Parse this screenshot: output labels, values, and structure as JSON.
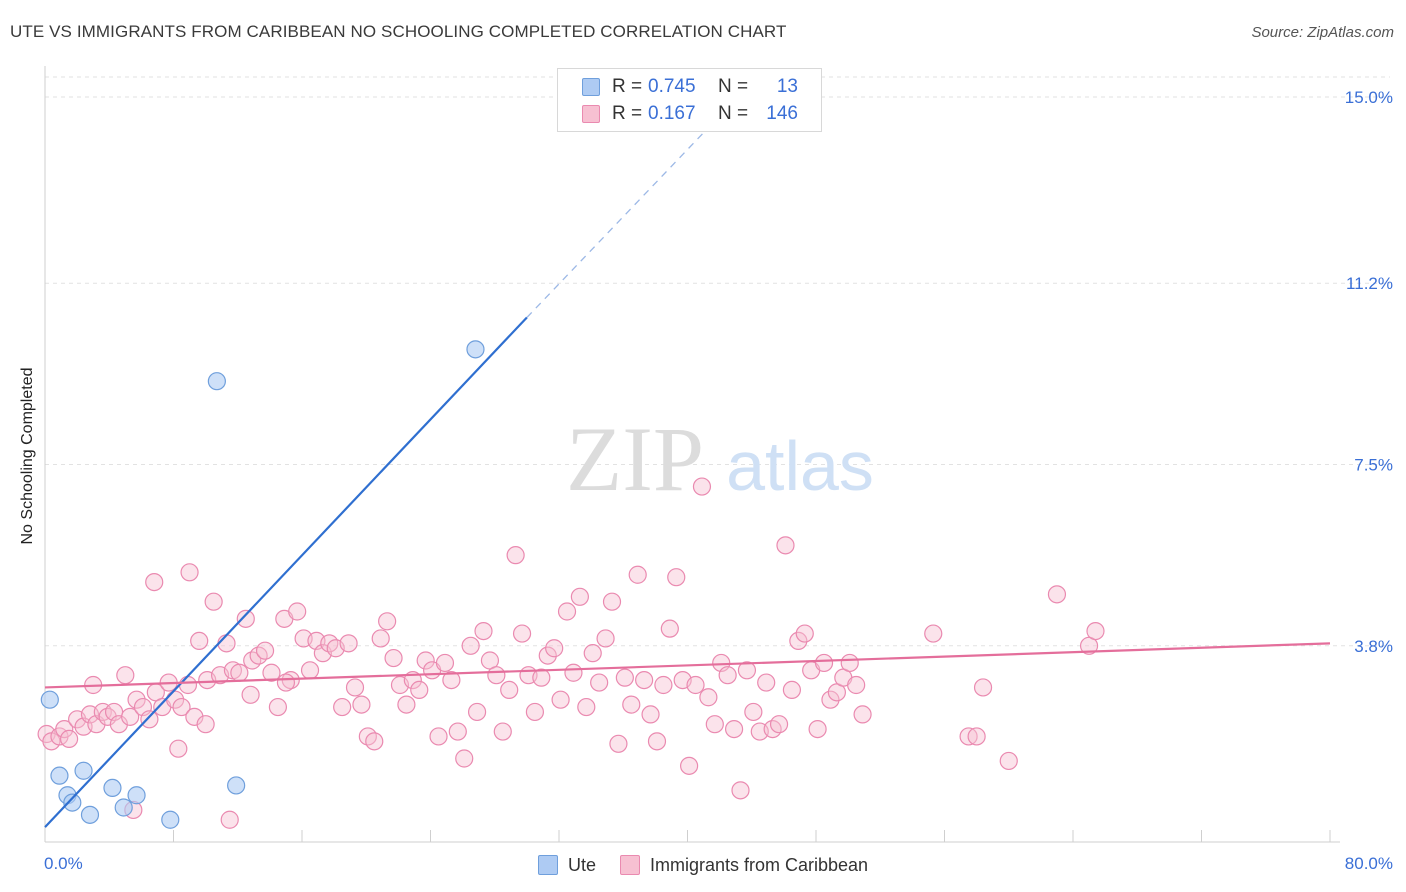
{
  "header": {
    "title": "UTE VS IMMIGRANTS FROM CARIBBEAN NO SCHOOLING COMPLETED CORRELATION CHART",
    "source": "Source: ZipAtlas.com"
  },
  "watermark": {
    "zip": "ZIP",
    "atlas": "atlas"
  },
  "legend": {
    "series1": {
      "r_label": "R =",
      "r_value": "0.745",
      "n_label": "N =",
      "n_value": "13"
    },
    "series2": {
      "r_label": "R =",
      "r_value": "0.167",
      "n_label": "N =",
      "n_value": "146"
    }
  },
  "bottom_legend": {
    "item1": "Ute",
    "item2": "Immigrants from Caribbean"
  },
  "colors": {
    "ute_fill": "#aecbf3",
    "ute_stroke": "#6f9fdc",
    "ute_line": "#2f6fd0",
    "carib_fill": "#f7c0d2",
    "carib_stroke": "#ea8ab0",
    "carib_line": "#e46e9b",
    "tick_label": "#3a6fd6",
    "grid": "#e2e2e2"
  },
  "chart_data": {
    "type": "scatter",
    "title": "UTE VS IMMIGRANTS FROM CARIBBEAN NO SCHOOLING COMPLETED CORRELATION CHART",
    "xlabel": "",
    "ylabel": "No Schooling Completed",
    "xlim": [
      0,
      80
    ],
    "ylim": [
      0,
      15.5
    ],
    "x_tick_labels": [
      "0.0%",
      "80.0%"
    ],
    "y_ticks": [
      3.8,
      7.5,
      11.2,
      15.0
    ],
    "y_tick_labels": [
      "3.8%",
      "7.5%",
      "11.2%",
      "15.0%"
    ],
    "grid": true,
    "legend_position": "top-center",
    "series": [
      {
        "name": "Ute",
        "r": 0.745,
        "n": 13,
        "trend": {
          "x0": 0,
          "y0": 0.1,
          "x1": 30,
          "y1": 10.5,
          "dashed_to_x": 44,
          "dashed_to_y": 15.3
        },
        "points": [
          [
            0.3,
            2.7
          ],
          [
            0.9,
            1.15
          ],
          [
            2.4,
            1.25
          ],
          [
            1.4,
            0.75
          ],
          [
            1.7,
            0.6
          ],
          [
            2.8,
            0.35
          ],
          [
            4.2,
            0.9
          ],
          [
            4.9,
            0.5
          ],
          [
            5.7,
            0.75
          ],
          [
            7.8,
            0.25
          ],
          [
            10.7,
            9.2
          ],
          [
            11.9,
            0.95
          ],
          [
            26.8,
            9.85
          ]
        ]
      },
      {
        "name": "Immigrants from Caribbean",
        "r": 0.167,
        "n": 146,
        "trend": {
          "x0": 0,
          "y0": 2.95,
          "x1": 80,
          "y1": 3.85
        },
        "points": [
          [
            0.1,
            2.0
          ],
          [
            0.4,
            1.85
          ],
          [
            0.9,
            1.95
          ],
          [
            1.2,
            2.1
          ],
          [
            1.5,
            1.9
          ],
          [
            2.0,
            2.3
          ],
          [
            2.4,
            2.15
          ],
          [
            2.8,
            2.4
          ],
          [
            3.2,
            2.2
          ],
          [
            3.6,
            2.45
          ],
          [
            3.9,
            2.35
          ],
          [
            4.3,
            2.45
          ],
          [
            4.6,
            2.2
          ],
          [
            5.0,
            3.2
          ],
          [
            5.3,
            2.35
          ],
          [
            5.7,
            2.7
          ],
          [
            6.1,
            2.55
          ],
          [
            6.5,
            2.3
          ],
          [
            6.9,
            2.85
          ],
          [
            7.3,
            2.55
          ],
          [
            7.7,
            3.05
          ],
          [
            8.1,
            2.7
          ],
          [
            8.5,
            2.55
          ],
          [
            8.9,
            3.0
          ],
          [
            9.3,
            2.35
          ],
          [
            9.0,
            5.3
          ],
          [
            10.1,
            3.1
          ],
          [
            10.5,
            4.7
          ],
          [
            10.9,
            3.2
          ],
          [
            11.3,
            3.85
          ],
          [
            11.7,
            3.3
          ],
          [
            12.1,
            3.25
          ],
          [
            12.5,
            4.35
          ],
          [
            12.9,
            3.5
          ],
          [
            13.3,
            3.6
          ],
          [
            13.7,
            3.7
          ],
          [
            14.1,
            3.25
          ],
          [
            14.5,
            2.55
          ],
          [
            14.9,
            4.35
          ],
          [
            15.3,
            3.1
          ],
          [
            15.7,
            4.5
          ],
          [
            16.1,
            3.95
          ],
          [
            16.5,
            3.3
          ],
          [
            16.9,
            3.9
          ],
          [
            17.3,
            3.65
          ],
          [
            17.7,
            3.85
          ],
          [
            18.1,
            3.75
          ],
          [
            18.5,
            2.55
          ],
          [
            18.9,
            3.85
          ],
          [
            19.3,
            2.95
          ],
          [
            19.7,
            2.6
          ],
          [
            20.1,
            1.95
          ],
          [
            20.5,
            1.85
          ],
          [
            20.9,
            3.95
          ],
          [
            21.3,
            4.3
          ],
          [
            21.7,
            3.55
          ],
          [
            22.1,
            3.0
          ],
          [
            22.5,
            2.6
          ],
          [
            22.9,
            3.1
          ],
          [
            23.3,
            2.9
          ],
          [
            23.7,
            3.5
          ],
          [
            24.1,
            3.3
          ],
          [
            24.5,
            1.95
          ],
          [
            24.9,
            3.45
          ],
          [
            25.3,
            3.1
          ],
          [
            25.7,
            2.05
          ],
          [
            26.1,
            1.5
          ],
          [
            26.5,
            3.8
          ],
          [
            26.9,
            2.45
          ],
          [
            27.3,
            4.1
          ],
          [
            27.7,
            3.5
          ],
          [
            28.1,
            3.2
          ],
          [
            28.5,
            2.05
          ],
          [
            28.9,
            2.9
          ],
          [
            29.3,
            5.65
          ],
          [
            29.7,
            4.05
          ],
          [
            30.1,
            3.2
          ],
          [
            30.5,
            2.45
          ],
          [
            30.9,
            3.15
          ],
          [
            31.3,
            3.6
          ],
          [
            31.7,
            3.75
          ],
          [
            32.1,
            2.7
          ],
          [
            32.5,
            4.5
          ],
          [
            32.9,
            3.25
          ],
          [
            33.3,
            4.8
          ],
          [
            33.7,
            2.55
          ],
          [
            34.1,
            3.65
          ],
          [
            34.5,
            3.05
          ],
          [
            34.9,
            3.95
          ],
          [
            35.3,
            4.7
          ],
          [
            35.7,
            1.8
          ],
          [
            36.1,
            3.15
          ],
          [
            36.5,
            2.6
          ],
          [
            36.9,
            5.25
          ],
          [
            37.3,
            3.1
          ],
          [
            37.7,
            2.4
          ],
          [
            38.1,
            1.85
          ],
          [
            38.5,
            3.0
          ],
          [
            38.9,
            4.15
          ],
          [
            39.3,
            5.2
          ],
          [
            39.7,
            3.1
          ],
          [
            40.1,
            1.35
          ],
          [
            40.5,
            3.0
          ],
          [
            40.9,
            7.05
          ],
          [
            41.3,
            2.75
          ],
          [
            41.7,
            2.2
          ],
          [
            42.1,
            3.45
          ],
          [
            42.5,
            3.2
          ],
          [
            42.9,
            2.1
          ],
          [
            43.3,
            0.85
          ],
          [
            43.7,
            3.3
          ],
          [
            44.1,
            2.45
          ],
          [
            44.5,
            2.05
          ],
          [
            44.9,
            3.05
          ],
          [
            45.3,
            2.1
          ],
          [
            45.7,
            2.2
          ],
          [
            46.1,
            5.85
          ],
          [
            46.5,
            2.9
          ],
          [
            46.9,
            3.9
          ],
          [
            47.3,
            4.05
          ],
          [
            47.7,
            3.3
          ],
          [
            48.1,
            2.1
          ],
          [
            48.5,
            3.45
          ],
          [
            48.9,
            2.7
          ],
          [
            49.3,
            2.85
          ],
          [
            49.7,
            3.15
          ],
          [
            50.1,
            3.45
          ],
          [
            50.5,
            3.0
          ],
          [
            50.9,
            2.4
          ],
          [
            55.3,
            4.05
          ],
          [
            57.5,
            1.95
          ],
          [
            58.0,
            1.95
          ],
          [
            58.4,
            2.95
          ],
          [
            60.0,
            1.45
          ],
          [
            63.0,
            4.85
          ],
          [
            65.0,
            3.8
          ],
          [
            65.4,
            4.1
          ],
          [
            11.5,
            0.25
          ],
          [
            12.8,
            2.8
          ],
          [
            15.0,
            3.05
          ],
          [
            8.3,
            1.7
          ],
          [
            6.8,
            5.1
          ],
          [
            10.0,
            2.2
          ],
          [
            3.0,
            3.0
          ],
          [
            5.5,
            0.45
          ],
          [
            9.6,
            3.9
          ]
        ]
      }
    ]
  }
}
